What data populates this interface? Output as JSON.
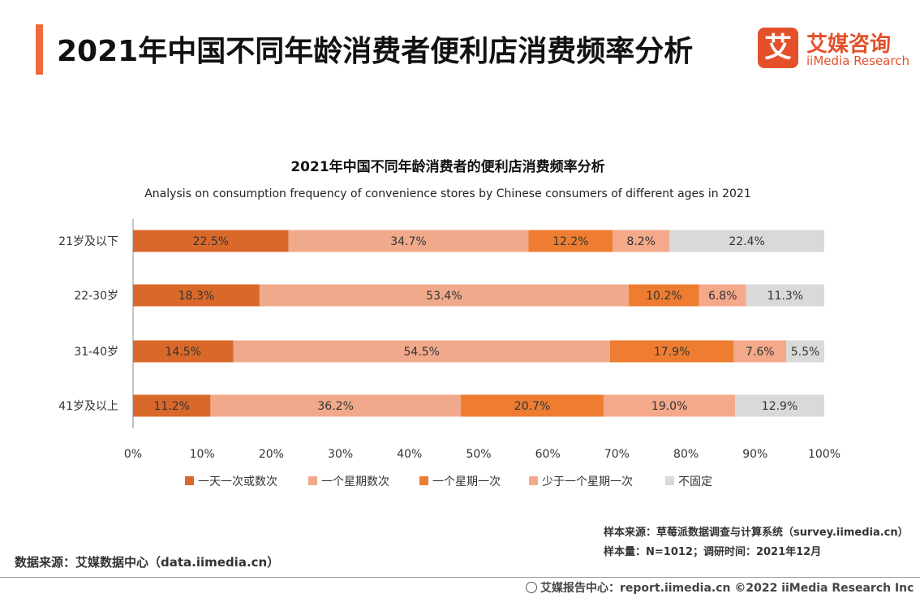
{
  "header": {
    "title": "2021年中国不同年龄消费者便利店消费频率分析",
    "logo_mark": "艾",
    "logo_cn": "艾媒咨询",
    "logo_en": "iiMedia Research"
  },
  "chart_data": {
    "type": "stacked-bar-horizontal",
    "title": "2021年中国不同年龄消费者的便利店消费频率分析",
    "subtitle": "Analysis on consumption frequency of convenience stores by Chinese consumers of different ages in 2021",
    "categories": [
      "21岁及以下",
      "22-30岁",
      "31-40岁",
      "41岁及以上"
    ],
    "series": [
      {
        "name": "一天一次或数次",
        "color": "#d9692a",
        "values": [
          22.5,
          18.3,
          14.5,
          11.2
        ]
      },
      {
        "name": "一个星期数次",
        "color": "#f0a98b",
        "values": [
          34.7,
          53.4,
          54.5,
          36.2
        ]
      },
      {
        "name": "一个星期一次",
        "color": "#ee7d31",
        "values": [
          12.2,
          10.2,
          17.9,
          20.7
        ]
      },
      {
        "name": "少于一个星期一次",
        "color": "#f3a98a",
        "values": [
          8.2,
          6.8,
          7.6,
          19.0
        ]
      },
      {
        "name": "不固定",
        "color": "#d9d9d9",
        "values": [
          22.4,
          11.3,
          5.5,
          12.9
        ]
      }
    ],
    "x_ticks": [
      "0%",
      "10%",
      "20%",
      "30%",
      "40%",
      "50%",
      "60%",
      "70%",
      "80%",
      "90%",
      "100%"
    ],
    "xlim": [
      0,
      100
    ],
    "legend": "bottom"
  },
  "notes": {
    "sample_source": "样本来源：草莓派数据调查与计算系统（survey.iimedia.cn）",
    "sample_size": "样本量：N=1012；调研时间：2021年12月",
    "data_source": "数据来源：艾媒数据中心（data.iimedia.cn）"
  },
  "footer": {
    "text": "艾媒报告中心：report.iimedia.cn   ©2022  iiMedia Research  Inc"
  }
}
